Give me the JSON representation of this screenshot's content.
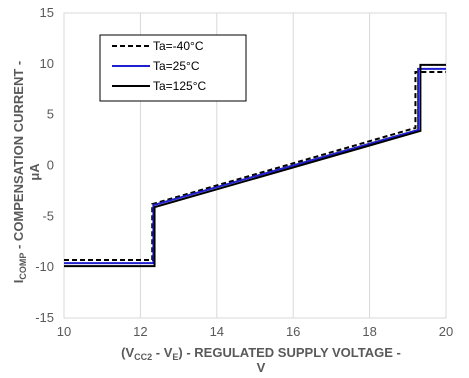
{
  "chart_data": {
    "type": "line",
    "title": "",
    "xlabel": {
      "parts": [
        "(V",
        "CC2",
        " - V",
        "E",
        ") - REGULATED SUPPLY VOLTAGE -"
      ],
      "line2": "V"
    },
    "ylabel": {
      "parts": [
        "I",
        "COMP",
        " - COMPENSATION CURRENT -"
      ],
      "line2": "μA"
    },
    "xlim": [
      10,
      20
    ],
    "ylim": [
      -15,
      15
    ],
    "x_ticks": [
      10,
      12,
      14,
      16,
      18,
      20
    ],
    "y_ticks": [
      -15,
      -10,
      -5,
      0,
      5,
      10,
      15
    ],
    "grid": "vertical gridlines",
    "legend_placement": "top-left",
    "series": [
      {
        "name": "Ta=-40°C",
        "color": "#000000",
        "style": "dashed",
        "x": [
          10,
          12.31,
          12.31,
          19.2,
          19.2,
          20
        ],
        "y": [
          -9.3,
          -9.3,
          -3.8,
          3.7,
          9.2,
          9.2
        ]
      },
      {
        "name": "Ta=25°C",
        "color": "#1f1fcf",
        "style": "solid",
        "x": [
          10,
          12.34,
          12.34,
          19.27,
          19.27,
          20
        ],
        "y": [
          -9.6,
          -9.6,
          -3.9,
          3.5,
          9.5,
          9.5
        ]
      },
      {
        "name": "Ta=125°C",
        "color": "#000000",
        "style": "solid",
        "x": [
          10,
          12.37,
          12.37,
          19.33,
          19.33,
          20
        ],
        "y": [
          -9.9,
          -9.9,
          -4.1,
          3.4,
          9.9,
          9.9
        ]
      }
    ]
  }
}
